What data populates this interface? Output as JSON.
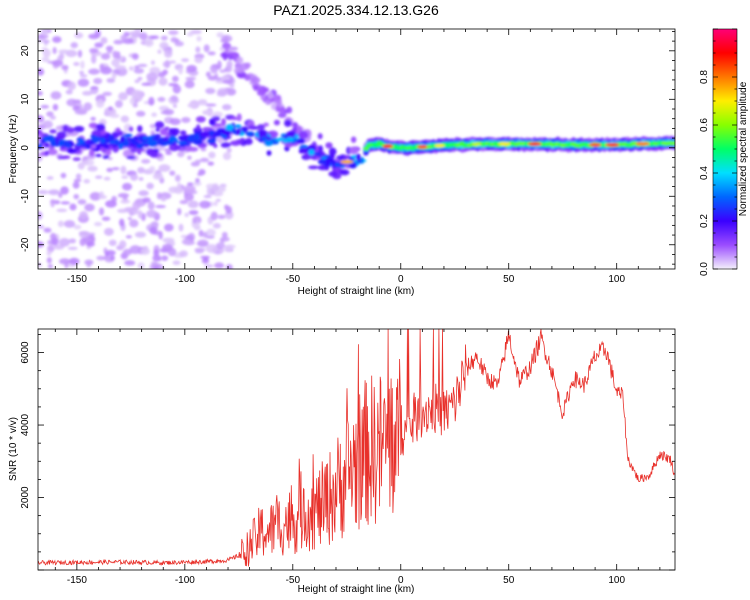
{
  "title": "PAZ1.2025.334.12.13.G26",
  "colors": {
    "axis": "#000000",
    "snr_line": "#e8302a",
    "spectrogram_background": "#ffffff"
  },
  "chart_data": [
    {
      "type": "heatmap",
      "name": "spectrogram",
      "xlabel": "Height of straight line (km)",
      "ylabel": "Frequency (Hz)",
      "xlim": [
        -168,
        127
      ],
      "ylim": [
        -25,
        24.5
      ],
      "xticks": [
        -150,
        -100,
        -50,
        0,
        50,
        100
      ],
      "yticks": [
        -20,
        -10,
        0,
        10,
        20
      ],
      "grid": false,
      "ridge": {
        "description": "frequency of the dominant signal ridge vs height",
        "x": [
          -168,
          -130,
          -100,
          -78,
          -70,
          -60,
          -50,
          -40,
          -33,
          -28,
          -23,
          -18,
          -15,
          -10,
          -5,
          0,
          5,
          10,
          20,
          40,
          60,
          80,
          100,
          110,
          127
        ],
        "y": [
          1.0,
          1.5,
          1.5,
          3.5,
          3.5,
          1.5,
          2.0,
          -1.0,
          -3.0,
          -3.5,
          -2.5,
          -2.0,
          0.5,
          0.8,
          0.2,
          0.0,
          0.0,
          0.2,
          0.5,
          0.8,
          0.8,
          0.6,
          0.6,
          0.8,
          1.0
        ]
      },
      "colorbar": {
        "label": "Normalized spectral amplitude",
        "range": [
          0.0,
          1.0
        ],
        "ticks": [
          {
            "value": 0.0,
            "label": "0.0"
          },
          {
            "value": 0.2,
            "label": "0.2"
          },
          {
            "value": 0.4,
            "label": "0.4"
          },
          {
            "value": 0.6,
            "label": "0.6"
          },
          {
            "value": 0.8,
            "label": "0.8"
          }
        ],
        "colormap": [
          "#f4f0fb",
          "#9b4dff",
          "#3a00ff",
          "#0066ff",
          "#00dfff",
          "#00ff66",
          "#88ff00",
          "#ffee00",
          "#ff7700",
          "#ff0000",
          "#ff0077"
        ]
      }
    },
    {
      "type": "line",
      "name": "snr",
      "xlabel": "Height of straight line (km)",
      "ylabel": "SNR (10 * v/v)",
      "xlim": [
        -168,
        127
      ],
      "ylim": [
        0,
        6650
      ],
      "xticks": [
        -150,
        -100,
        -50,
        0,
        50,
        100
      ],
      "yticks": [
        2000,
        4000,
        6000
      ],
      "grid": false,
      "series": [
        {
          "name": "SNR",
          "color": "#e8302a",
          "x": [
            -168,
            -150,
            -130,
            -110,
            -90,
            -80,
            -75,
            -70,
            -65,
            -60,
            -55,
            -50,
            -45,
            -40,
            -35,
            -30,
            -25,
            -20,
            -15,
            -10,
            -5,
            0,
            5,
            10,
            15,
            20,
            25,
            30,
            35,
            40,
            45,
            50,
            55,
            60,
            65,
            70,
            75,
            80,
            85,
            90,
            95,
            100,
            103,
            105,
            110,
            115,
            120,
            125,
            127
          ],
          "y": [
            200,
            210,
            220,
            200,
            230,
            270,
            400,
            650,
            1050,
            1100,
            1300,
            1350,
            1700,
            1600,
            1850,
            2200,
            2650,
            3000,
            3300,
            3350,
            3600,
            3650,
            4000,
            4350,
            4500,
            4300,
            4600,
            5500,
            5900,
            5300,
            5100,
            6500,
            5200,
            5600,
            6400,
            5500,
            4300,
            5300,
            5100,
            5900,
            6100,
            4900,
            4800,
            3100,
            2500,
            2600,
            3200,
            3050,
            2600
          ]
        }
      ]
    }
  ]
}
